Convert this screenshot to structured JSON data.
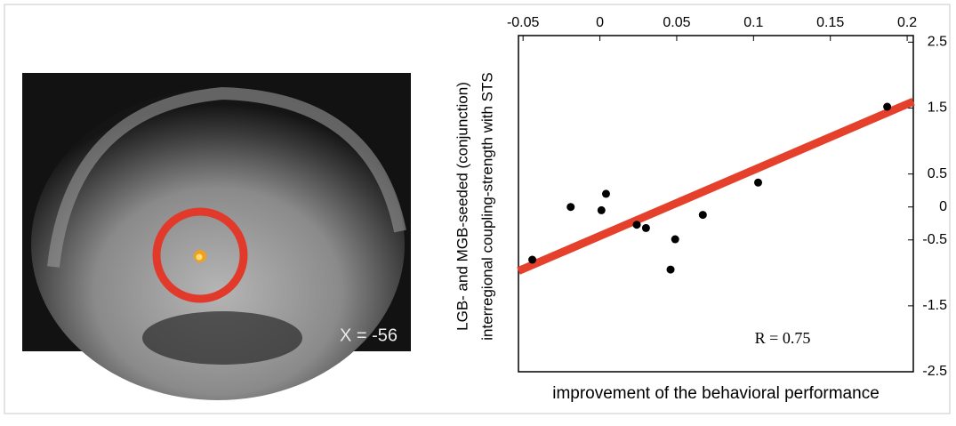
{
  "image": {
    "label": "X = -56"
  },
  "chart_data": {
    "type": "scatter",
    "x_label": "improvement of the behavioral performance",
    "y_label": [
      "LGB- and MGB-seeded (conjunction)",
      "interregional coupling-strength with STS"
    ],
    "annotation": "R = 0.75",
    "x": [
      -0.044,
      -0.019,
      0.001,
      0.004,
      0.024,
      0.03,
      0.049,
      0.046,
      0.067,
      0.103,
      0.187
    ],
    "y": [
      -0.8,
      0,
      -0.05,
      0.2,
      -0.27,
      -0.32,
      -0.49,
      -0.95,
      -0.12,
      0.37,
      1.52
    ],
    "color": "#000000",
    "fit_line": {
      "x": [
        -0.053,
        0.204
      ],
      "y": [
        -0.97,
        1.6
      ],
      "color": "#e4402c"
    },
    "xlim": [
      -0.053,
      0.204
    ],
    "ylim": [
      -2.5,
      2.6
    ],
    "xticks": [
      -0.05,
      0,
      0.05,
      0.1,
      0.15,
      0.2
    ],
    "yticks": [
      2.5,
      1.5,
      0.5,
      0,
      -0.5,
      -1.5,
      -2.5
    ]
  }
}
